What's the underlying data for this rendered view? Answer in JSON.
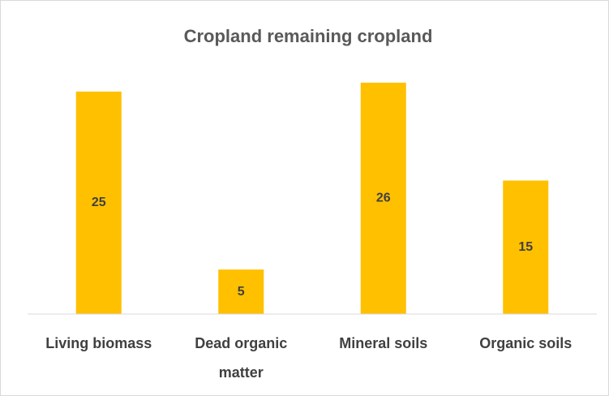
{
  "chart_data": {
    "type": "bar",
    "title": "Cropland remaining cropland",
    "categories": [
      "Living biomass",
      "Dead organic matter",
      "Mineral soils",
      "Organic soils"
    ],
    "values": [
      25,
      5,
      26,
      15
    ],
    "color": "#ffc000",
    "ylim": [
      0,
      30
    ],
    "grid": false
  }
}
